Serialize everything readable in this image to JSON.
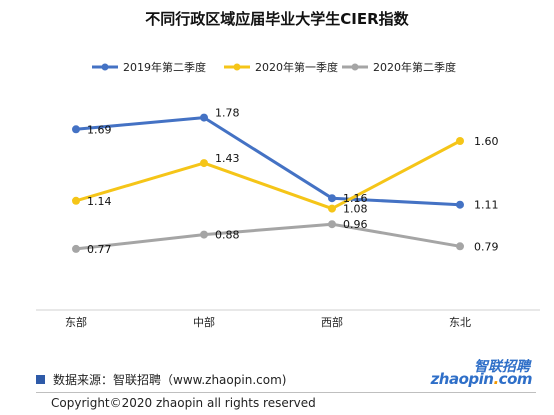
{
  "chart_data": {
    "type": "line",
    "title": "不同行政区域应届毕业大学生CIER指数",
    "categories": [
      "东部",
      "中部",
      "西部",
      "东北"
    ],
    "series": [
      {
        "name": "2019年第二季度",
        "values": [
          1.69,
          1.78,
          1.16,
          1.11
        ],
        "color": "#4472c4"
      },
      {
        "name": "2020年第一季度",
        "values": [
          1.14,
          1.43,
          1.08,
          1.6
        ],
        "color": "#f5c518"
      },
      {
        "name": "2020年第二季度",
        "values": [
          0.77,
          0.88,
          0.96,
          0.79
        ],
        "color": "#a5a5a5"
      }
    ],
    "value_labels": [
      [
        "1.69",
        "1.78",
        "1.16",
        "1.11"
      ],
      [
        "1.14",
        "1.43",
        "1.08",
        "1.60"
      ],
      [
        "0.77",
        "0.88",
        "0.96",
        "0.79"
      ]
    ],
    "ylim": [
      0.5,
      2.0
    ],
    "grid": false,
    "legend_position": "top"
  },
  "footer": {
    "source": "数据来源：智联招聘（www.zhaopin.com)",
    "copyright": "Copyright©2020 zhaopin all rights reserved"
  },
  "logo": {
    "name_cn": "智联招聘",
    "name_en_main": "zhaopin",
    "name_en_dot": ".",
    "name_en_tld": "com"
  }
}
